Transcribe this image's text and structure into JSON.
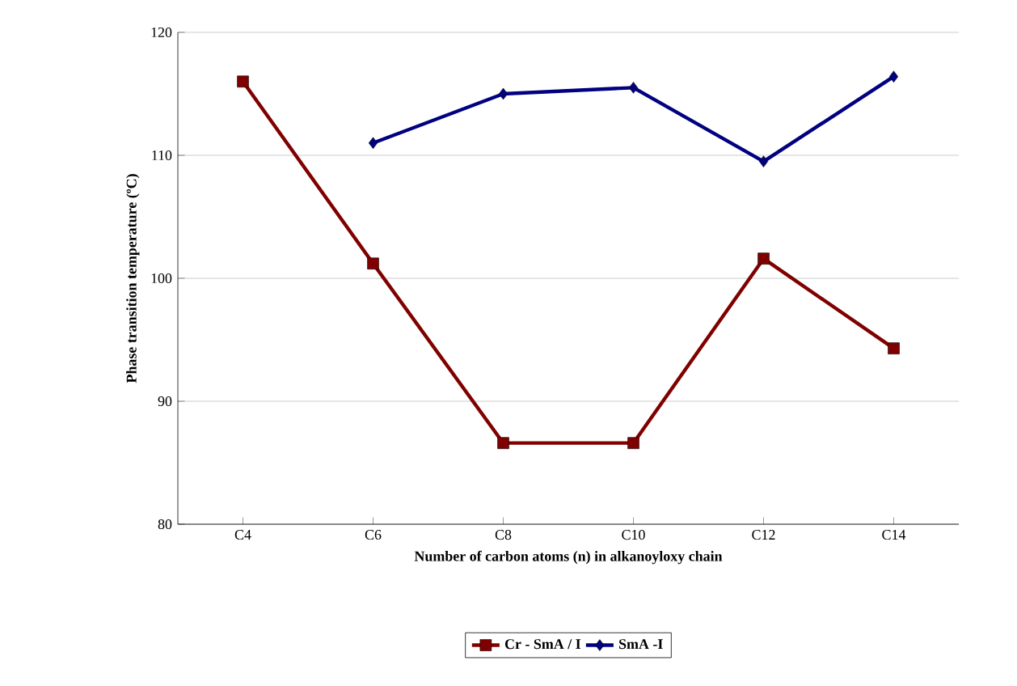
{
  "chart_data": {
    "type": "line",
    "xlabel": "Number of carbon atoms (n) in alkanoyloxy chain",
    "ylabel": "Phase transition temperature (ºC)",
    "categories": [
      "C4",
      "C6",
      "C8",
      "C10",
      "C12",
      "C14"
    ],
    "series": [
      {
        "name": "Cr - SmA / I",
        "color": "#800000",
        "marker": "square",
        "values": [
          116,
          101.2,
          86.6,
          86.6,
          101.6,
          94.3
        ]
      },
      {
        "name": "SmA -I",
        "color": "#000080",
        "marker": "diamond",
        "values": [
          null,
          111,
          115,
          115.5,
          109.5,
          116.4
        ]
      }
    ],
    "ylim": [
      80,
      120
    ],
    "yticks": [
      80,
      90,
      100,
      110,
      120
    ],
    "grid": "y",
    "legend": "bottom"
  }
}
